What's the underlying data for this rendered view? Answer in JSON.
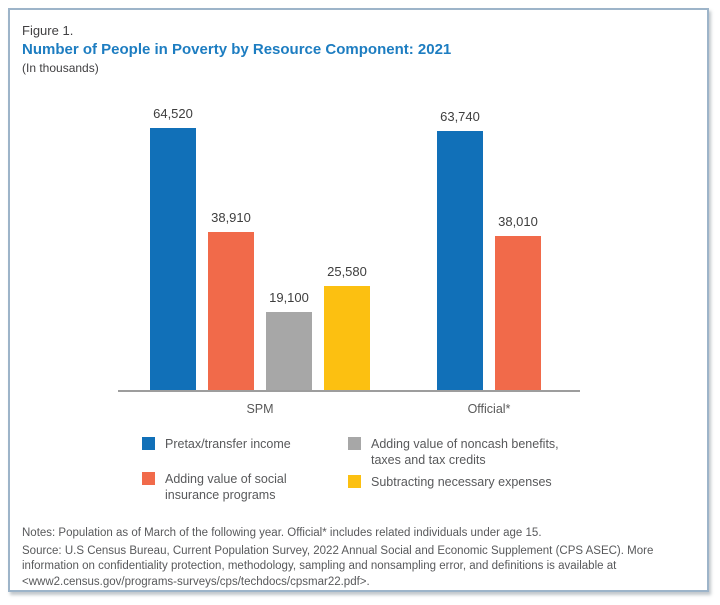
{
  "figure": {
    "label": "Figure 1.",
    "title": "Number of People in Poverty by Resource Component: 2021",
    "subtitle": "(In thousands)"
  },
  "chart_data": {
    "type": "bar",
    "title": "Number of People in Poverty by Resource Component: 2021",
    "units": "In thousands",
    "categories": [
      "SPM",
      "Official*"
    ],
    "series": [
      {
        "name": "Pretax/transfer income",
        "color": "#1170b8",
        "values": [
          64520,
          63740
        ]
      },
      {
        "name": "Adding value of social insurance programs",
        "color": "#f16a4a",
        "values": [
          38910,
          38010
        ]
      },
      {
        "name": "Adding value of noncash benefits, taxes and tax credits",
        "color": "#a7a7a7",
        "values": [
          19100,
          null
        ]
      },
      {
        "name": "Subtracting necessary expenses",
        "color": "#fcc011",
        "values": [
          25580,
          null
        ]
      }
    ],
    "value_labels": [
      [
        "64,520",
        "38,910",
        "19,100",
        "25,580"
      ],
      [
        "63,740",
        "38,010"
      ]
    ],
    "ylim": [
      0,
      70000
    ],
    "grid": false,
    "legend_position": "bottom"
  },
  "legend": {
    "items": [
      {
        "label": "Pretax/transfer income",
        "color": "#1170b8"
      },
      {
        "label": "Adding value of social\ninsurance programs",
        "color": "#f16a4a"
      },
      {
        "label": "Adding value of noncash benefits,\ntaxes and tax credits",
        "color": "#a7a7a7"
      },
      {
        "label": "Subtracting necessary expenses",
        "color": "#fcc011"
      }
    ]
  },
  "notes": {
    "notes_line": "Notes: Population as of March of the following year. Official* includes related individuals under age 15.",
    "source_line": "Source: U.S Census Bureau, Current Population Survey, 2022 Annual Social and Economic Supplement (CPS ASEC). More information on confidentiality protection, methodology, sampling and nonsampling error, and definitions is available at <www2.census.gov/programs-surveys/cps/techdocs/cpsmar22.pdf>."
  }
}
